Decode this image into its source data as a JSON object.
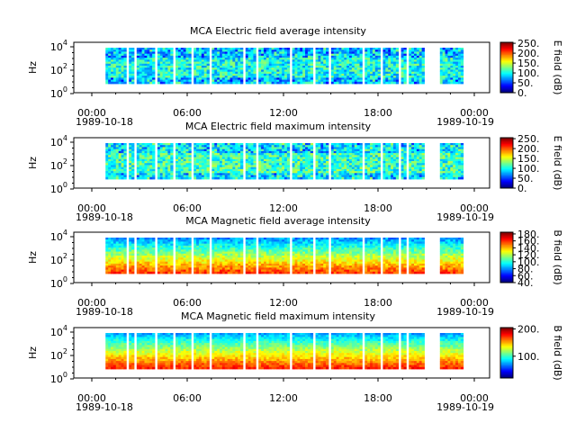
{
  "figure": {
    "background": "#ffffff"
  },
  "chart_data": [
    {
      "type": "heatmap",
      "title": "MCA  Electric field average intensity",
      "ylabel": "Hz",
      "y_ticks": [
        {
          "exp": "4"
        },
        {
          "exp": "2"
        },
        {
          "exp": "0"
        }
      ],
      "y_base": "10",
      "y_scale": "log",
      "ylim_hz": [
        1,
        30000
      ],
      "x_ticks": [
        "00:00",
        "06:00",
        "12:00",
        "18:00",
        "00:00"
      ],
      "x_date_left": "1989-10-18",
      "x_date_right": "1989-10-19",
      "xlim": [
        "1989-10-18 00:00",
        "1989-10-19 00:00"
      ],
      "colorbar": {
        "label": "E field (dB)",
        "ticks": [
          "250.",
          "200.",
          "150.",
          "100.",
          "50.",
          "0."
        ],
        "range": [
          0,
          255
        ],
        "levels": [
          250,
          200,
          150,
          100,
          50,
          0
        ]
      },
      "dominant_level": 100,
      "style": "efield"
    },
    {
      "type": "heatmap",
      "title": "MCA  Electric field maximum intensity",
      "ylabel": "Hz",
      "y_ticks": [
        {
          "exp": "4"
        },
        {
          "exp": "2"
        },
        {
          "exp": "0"
        }
      ],
      "y_base": "10",
      "y_scale": "log",
      "ylim_hz": [
        1,
        30000
      ],
      "x_ticks": [
        "00:00",
        "06:00",
        "12:00",
        "18:00",
        "00:00"
      ],
      "x_date_left": "1989-10-18",
      "x_date_right": "1989-10-19",
      "xlim": [
        "1989-10-18 00:00",
        "1989-10-19 00:00"
      ],
      "colorbar": {
        "label": "E field (dB)",
        "ticks": [
          "250.",
          "200.",
          "150.",
          "100.",
          "50.",
          "0."
        ],
        "range": [
          0,
          255
        ],
        "levels": [
          250,
          200,
          150,
          100,
          50,
          0
        ]
      },
      "dominant_level": 110,
      "style": "efield-max"
    },
    {
      "type": "heatmap",
      "title": "MCA  Magnetic field average intensity",
      "ylabel": "Hz",
      "y_ticks": [
        {
          "exp": "4"
        },
        {
          "exp": "2"
        },
        {
          "exp": "0"
        }
      ],
      "y_base": "10",
      "y_scale": "log",
      "ylim_hz": [
        1,
        30000
      ],
      "x_ticks": [
        "00:00",
        "06:00",
        "12:00",
        "18:00",
        "00:00"
      ],
      "x_date_left": "1989-10-18",
      "x_date_right": "1989-10-19",
      "xlim": [
        "1989-10-18 00:00",
        "1989-10-19 00:00"
      ],
      "colorbar": {
        "label": "B field (dB)",
        "ticks": [
          "180.",
          "160.",
          "140.",
          "120.",
          "100.",
          "80.",
          "60.",
          "40."
        ],
        "range": [
          40,
          185
        ],
        "levels": [
          180,
          160,
          140,
          120,
          100,
          80,
          60,
          40
        ]
      },
      "dominant_level": 115,
      "style": "bfield"
    },
    {
      "type": "heatmap",
      "title": "MCA  Magnetic field maximum intensity",
      "ylabel": "Hz",
      "y_ticks": [
        {
          "exp": "4"
        },
        {
          "exp": "2"
        },
        {
          "exp": "0"
        }
      ],
      "y_base": "10",
      "y_scale": "log",
      "ylim_hz": [
        1,
        30000
      ],
      "x_ticks": [
        "00:00",
        "06:00",
        "12:00",
        "18:00",
        "00:00"
      ],
      "x_date_left": "1989-10-18",
      "x_date_right": "1989-10-19",
      "xlim": [
        "1989-10-18 00:00",
        "1989-10-19 00:00"
      ],
      "colorbar": {
        "label": "B field (dB)",
        "ticks": [
          "200.",
          "100."
        ],
        "range": [
          20,
          205
        ],
        "levels": [
          200,
          100
        ]
      },
      "dominant_level": 120,
      "style": "bfield-max"
    }
  ]
}
